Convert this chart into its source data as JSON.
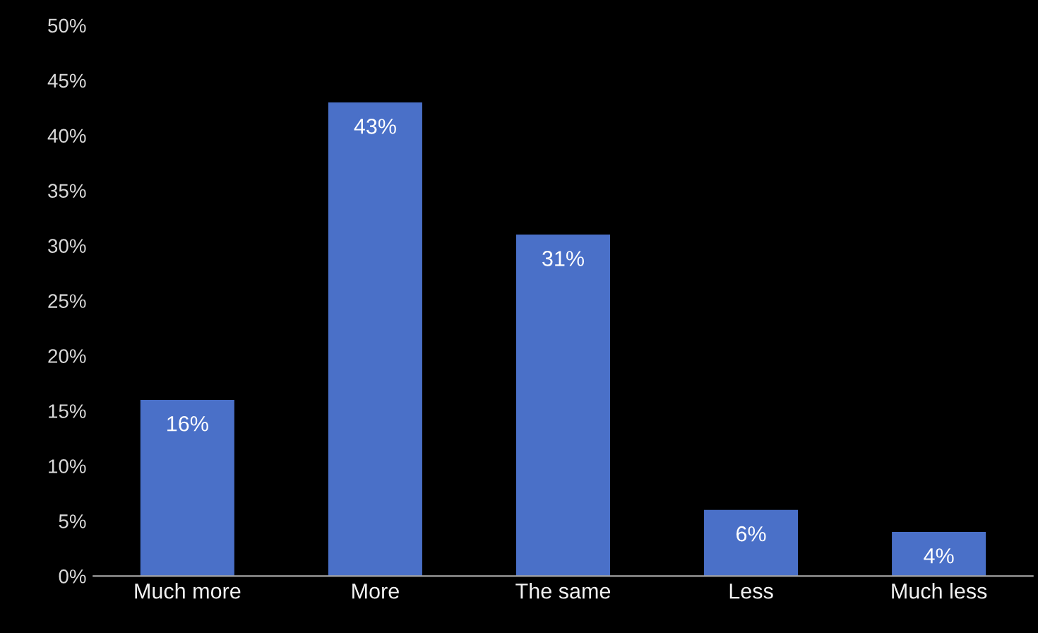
{
  "chart_data": {
    "type": "bar",
    "categories": [
      "Much more",
      "More",
      "The same",
      "Less",
      "Much less"
    ],
    "values": [
      16,
      43,
      31,
      6,
      4
    ],
    "value_labels": [
      "16%",
      "43%",
      "31%",
      "6%",
      "4%"
    ],
    "color": "#4a70c8",
    "ylim": [
      0,
      50
    ],
    "yticks": [
      {
        "value": 0,
        "label": "0%"
      },
      {
        "value": 5,
        "label": "5%"
      },
      {
        "value": 10,
        "label": "10%"
      },
      {
        "value": 15,
        "label": "15%"
      },
      {
        "value": 20,
        "label": "20%"
      },
      {
        "value": 25,
        "label": "25%"
      },
      {
        "value": 30,
        "label": "30%"
      },
      {
        "value": 35,
        "label": "35%"
      },
      {
        "value": 40,
        "label": "40%"
      },
      {
        "value": 45,
        "label": "45%"
      },
      {
        "value": 50,
        "label": "50%"
      }
    ],
    "grid": false,
    "legend": false
  }
}
